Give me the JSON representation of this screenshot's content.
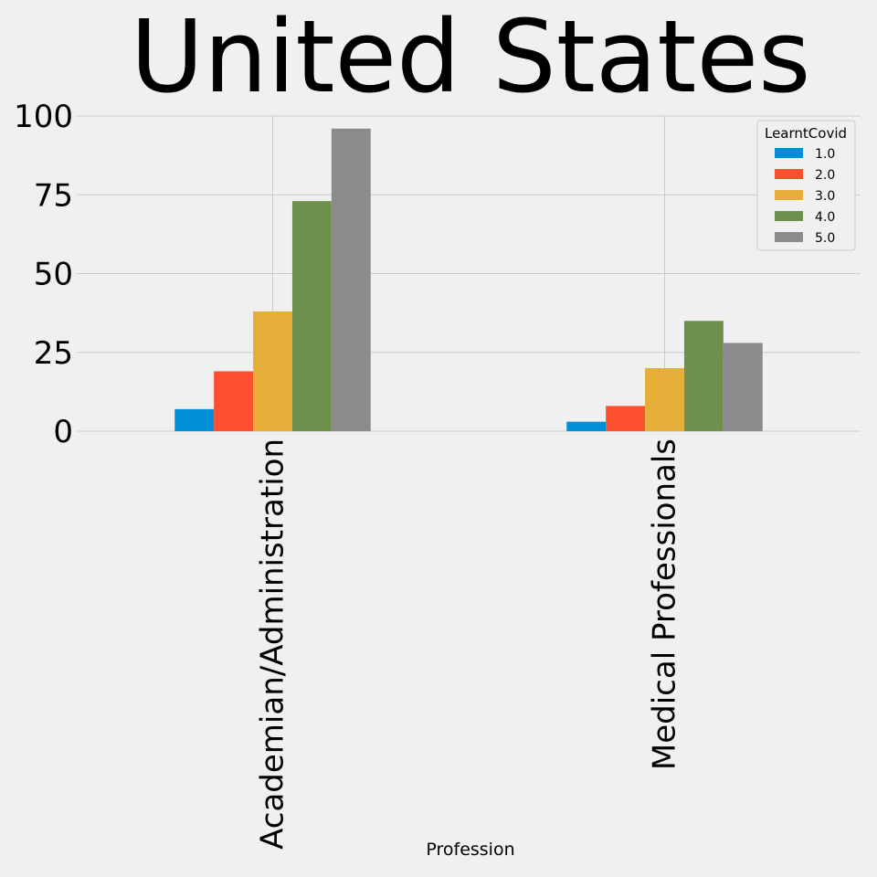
{
  "chart_data": {
    "type": "bar",
    "title": "United States",
    "xlabel": "Profession",
    "ylabel": "",
    "categories": [
      "Academian/Administration",
      "Medical Professionals"
    ],
    "series": [
      {
        "name": "1.0",
        "values": [
          7,
          3
        ],
        "color": "#008fd5"
      },
      {
        "name": "2.0",
        "values": [
          19,
          8
        ],
        "color": "#fc4f30"
      },
      {
        "name": "3.0",
        "values": [
          38,
          20
        ],
        "color": "#e5ae38"
      },
      {
        "name": "4.0",
        "values": [
          73,
          35
        ],
        "color": "#6d904f"
      },
      {
        "name": "5.0",
        "values": [
          96,
          28
        ],
        "color": "#8b8b8b"
      }
    ],
    "ylim": [
      0,
      100
    ],
    "yticks": [
      0,
      25,
      50,
      75,
      100
    ],
    "grid": true,
    "legend": {
      "title": "LearntCovid",
      "placement": "top-right"
    }
  }
}
